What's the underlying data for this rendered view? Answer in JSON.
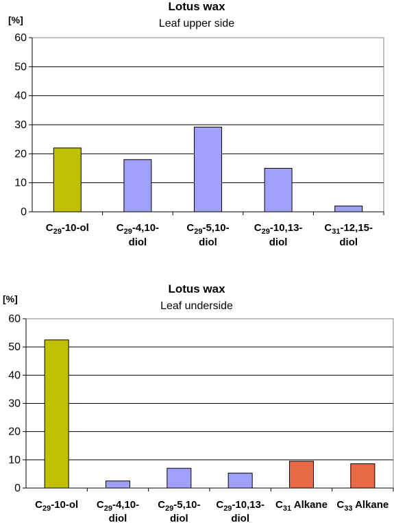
{
  "chart_data": [
    {
      "type": "bar",
      "title": "Lotus wax",
      "subtitle": "Leaf upper side",
      "ylabel": "[%]",
      "ylim": [
        0,
        60
      ],
      "yticks": [
        "0",
        "10",
        "20",
        "30",
        "40",
        "50",
        "60"
      ],
      "grid": true,
      "categories": [
        {
          "prefix": "C",
          "sub": "29",
          "line1": "-10-ol",
          "line2": ""
        },
        {
          "prefix": "C",
          "sub": "29",
          "line1": "-4,10-",
          "line2": "diol"
        },
        {
          "prefix": "C",
          "sub": "29",
          "line1": "-5,10-",
          "line2": "diol"
        },
        {
          "prefix": "C",
          "sub": "29",
          "line1": "-10,13-",
          "line2": "diol"
        },
        {
          "prefix": "C",
          "sub": "31",
          "line1": "-12,15-",
          "line2": "diol"
        }
      ],
      "values": [
        22,
        18,
        29.2,
        15,
        2
      ],
      "colors": [
        "#c0c000",
        "#a0a0f8",
        "#a0a0f8",
        "#a0a0f8",
        "#a0a0f8"
      ]
    },
    {
      "type": "bar",
      "title": "Lotus wax",
      "subtitle": "Leaf underside",
      "ylabel": "[%]",
      "ylim": [
        0,
        60
      ],
      "yticks": [
        "0",
        "10",
        "20",
        "30",
        "40",
        "50",
        "60"
      ],
      "grid": true,
      "categories": [
        {
          "prefix": "C",
          "sub": "29",
          "line1": "-10-ol",
          "line2": ""
        },
        {
          "prefix": "C",
          "sub": "29",
          "line1": "-4,10-",
          "line2": "diol"
        },
        {
          "prefix": "C",
          "sub": "29",
          "line1": "-5,10-",
          "line2": "diol"
        },
        {
          "prefix": "C",
          "sub": "29",
          "line1": "-10,13-",
          "line2": "diol"
        },
        {
          "prefix": "C",
          "sub": "31",
          "line1": " Alkane",
          "line2": ""
        },
        {
          "prefix": "C",
          "sub": "33",
          "line1": " Alkane",
          "line2": ""
        }
      ],
      "values": [
        52.5,
        2.5,
        7,
        5.3,
        9.5,
        8.6
      ],
      "colors": [
        "#c0c000",
        "#a0a0f8",
        "#a0a0f8",
        "#a0a0f8",
        "#e86a44",
        "#e86a44"
      ]
    }
  ]
}
